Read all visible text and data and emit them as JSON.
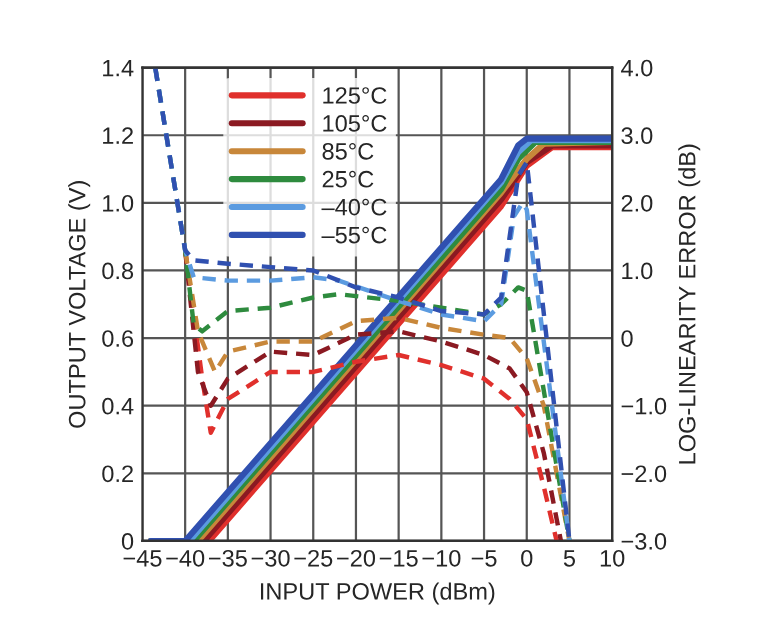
{
  "chart_data": {
    "type": "line",
    "xlabel": "INPUT POWER (dBm)",
    "ylabel": "OUTPUT VOLTAGE (V)",
    "y2label": "LOG-LINEARITY ERROR (dB)",
    "xlim": [
      -45,
      10
    ],
    "xticks": [
      {
        "value": -45,
        "label": "−45"
      },
      {
        "value": -40,
        "label": "−40"
      },
      {
        "value": -35,
        "label": "−35"
      },
      {
        "value": -30,
        "label": "−30"
      },
      {
        "value": -25,
        "label": "−25"
      },
      {
        "value": -20,
        "label": "−20"
      },
      {
        "value": -15,
        "label": "−15"
      },
      {
        "value": -10,
        "label": "−10"
      },
      {
        "value": -5,
        "label": "−5"
      },
      0,
      5,
      10
    ],
    "ylim": [
      0,
      1.4
    ],
    "yticks": [
      0,
      0.2,
      0.4,
      0.6,
      0.8,
      {
        "value": 1,
        "label": "1.0"
      },
      1.2,
      1.4
    ],
    "y2lim": [
      -3,
      4
    ],
    "y2ticks": [
      {
        "value": 4,
        "label": "4.0"
      },
      {
        "value": 3,
        "label": "3.0"
      },
      {
        "value": 2,
        "label": "2.0"
      },
      {
        "value": 1,
        "label": "1.0"
      },
      0,
      {
        "value": -1,
        "label": "−1.0"
      },
      {
        "value": -2,
        "label": "−2.0"
      },
      {
        "value": -3,
        "label": "−3.0"
      }
    ],
    "grid": true,
    "legend": "top left",
    "series": [
      {
        "name": "125°C",
        "color": "#e0302c",
        "line_style": "solid",
        "x": [
          -44,
          -37.2,
          -3,
          0,
          3,
          10
        ],
        "values": [
          0,
          0,
          0.99,
          1.11,
          1.165,
          1.165
        ]
      },
      {
        "name": "105°C",
        "color": "#8b1a22",
        "line_style": "solid",
        "x": [
          -44,
          -37.8,
          -3,
          0,
          3,
          10
        ],
        "values": [
          0,
          0,
          1.01,
          1.12,
          1.17,
          1.17
        ]
      },
      {
        "name": "85°C",
        "color": "#c8873a",
        "line_style": "solid",
        "x": [
          -44,
          -38.5,
          -3,
          0,
          2,
          10
        ],
        "values": [
          0,
          0,
          1.03,
          1.13,
          1.175,
          1.18
        ]
      },
      {
        "name": "25°C",
        "color": "#2e8b3e",
        "line_style": "solid",
        "x": [
          -44,
          -39,
          -3,
          -1,
          1,
          10
        ],
        "values": [
          0,
          0,
          1.04,
          1.13,
          1.18,
          1.18
        ]
      },
      {
        "name": "–40°C",
        "color": "#5b9be0",
        "line_style": "solid",
        "x": [
          -44,
          -39.5,
          -3,
          -1,
          0.5,
          10
        ],
        "values": [
          0,
          0,
          1.06,
          1.15,
          1.185,
          1.185
        ]
      },
      {
        "name": "–55°C",
        "color": "#3050b0",
        "line_style": "solid",
        "x": [
          -44,
          -40,
          -3,
          -1,
          0,
          10
        ],
        "values": [
          0,
          0,
          1.07,
          1.17,
          1.19,
          1.19
        ]
      },
      {
        "color": "#e0302c",
        "line_style": "dashed",
        "axis": "y2",
        "x": [
          -40,
          -38,
          -37,
          -35,
          -30,
          -25,
          -20,
          -15,
          -10,
          -5,
          -2,
          0,
          2,
          3.5
        ],
        "values": [
          1.3,
          -0.6,
          -1.4,
          -0.9,
          -0.5,
          -0.5,
          -0.35,
          -0.25,
          -0.4,
          -0.6,
          -0.9,
          -1.2,
          -2.2,
          -3
        ]
      },
      {
        "color": "#8b1a22",
        "line_style": "dashed",
        "axis": "y2",
        "x": [
          -40,
          -38.5,
          -37,
          -35,
          -30,
          -25,
          -20,
          -15,
          -10,
          -5,
          -2,
          0,
          2,
          4
        ],
        "values": [
          1.3,
          -0.5,
          -1.0,
          -0.6,
          -0.2,
          -0.25,
          0.05,
          0.1,
          -0.05,
          -0.25,
          -0.45,
          -0.8,
          -1.7,
          -3
        ]
      },
      {
        "color": "#c8873a",
        "line_style": "dashed",
        "axis": "y2",
        "x": [
          -40,
          -38.5,
          -36.5,
          -35,
          -30,
          -25,
          -20,
          -15,
          -10,
          -5,
          -2,
          0,
          2,
          5
        ],
        "values": [
          1.3,
          0.1,
          -0.5,
          -0.2,
          -0.05,
          -0.05,
          0.25,
          0.3,
          0.15,
          0.05,
          0,
          -0.3,
          -1.0,
          -3
        ]
      },
      {
        "color": "#2e8b3e",
        "line_style": "dashed",
        "axis": "y2",
        "x": [
          -43.5,
          -40,
          -39,
          -38,
          -35,
          -30,
          -25,
          -22,
          -15,
          -10,
          -5,
          -3,
          -1,
          0,
          5
        ],
        "values": [
          4,
          1.3,
          0.2,
          0.1,
          0.4,
          0.45,
          0.6,
          0.65,
          0.55,
          0.45,
          0.35,
          0.5,
          0.75,
          0.7,
          -3
        ]
      },
      {
        "color": "#5b9be0",
        "line_style": "dashed",
        "axis": "y2",
        "x": [
          -43.5,
          -40,
          -39,
          -35,
          -30,
          -25,
          -22,
          -15,
          -10,
          -5,
          -3,
          -1.5,
          -0.5,
          0,
          5
        ],
        "values": [
          4,
          1.3,
          0.9,
          0.85,
          0.85,
          0.9,
          0.85,
          0.55,
          0.35,
          0.25,
          0.5,
          1.8,
          2.0,
          1.9,
          -3
        ]
      },
      {
        "color": "#3050b0",
        "line_style": "dashed",
        "axis": "y2",
        "x": [
          -43.5,
          -40,
          -39,
          -35,
          -30,
          -25,
          -20,
          -15,
          -10,
          -5,
          -3,
          -2,
          -1,
          0,
          5
        ],
        "values": [
          4,
          1.3,
          1.15,
          1.1,
          1.05,
          1.0,
          0.75,
          0.6,
          0.4,
          0.35,
          0.6,
          1.5,
          2.4,
          2.6,
          -3
        ]
      }
    ]
  }
}
